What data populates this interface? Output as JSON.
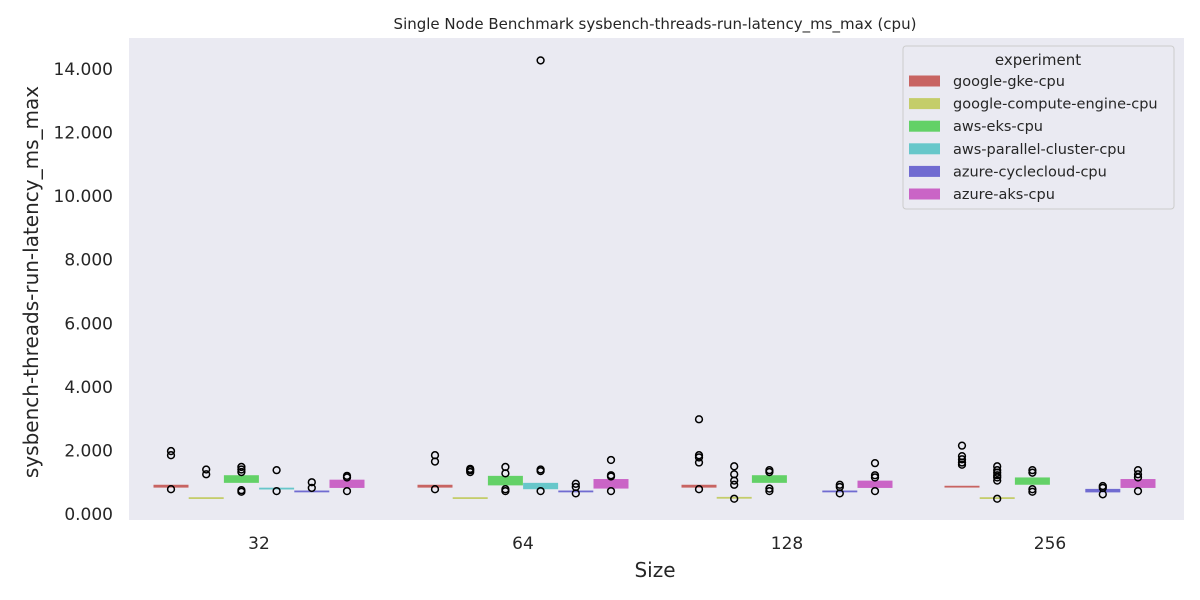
{
  "chart_data": {
    "type": "boxplot",
    "title": "Single Node Benchmark sysbench-threads-run-latency_ms_max (cpu)",
    "xlabel": "Size",
    "ylabel": "sysbench-threads-run-latency_ms_max",
    "categories": [
      "32",
      "64",
      "128",
      "256"
    ],
    "ylim": [
      -0.2,
      14.9
    ],
    "yticks": [
      0,
      2,
      4,
      6,
      8,
      10,
      12,
      14
    ],
    "ytick_labels": [
      "0.000",
      "2.000",
      "4.000",
      "6.000",
      "8.000",
      "10.000",
      "12.000",
      "14.000"
    ],
    "grid": false,
    "legend": {
      "title": "experiment",
      "placement": "top-right"
    },
    "series": [
      {
        "name": "google-gke-cpu",
        "color": "#c86462",
        "boxes": [
          {
            "category": "32",
            "q1": 0.83,
            "median": 0.87,
            "q3": 0.92,
            "outliers": [
              1.85,
              1.98,
              0.78
            ]
          },
          {
            "category": "64",
            "q1": 0.83,
            "median": 0.87,
            "q3": 0.92,
            "outliers": [
              1.65,
              1.85,
              0.78
            ]
          },
          {
            "category": "128",
            "q1": 0.83,
            "median": 0.87,
            "q3": 0.92,
            "outliers": [
              1.62,
              1.78,
              1.85,
              2.98,
              0.78
            ]
          },
          {
            "category": "256",
            "q1": 0.84,
            "median": 0.86,
            "q3": 0.88,
            "outliers": [
              1.55,
              1.62,
              1.72,
              1.82,
              2.15
            ]
          }
        ]
      },
      {
        "name": "google-compute-engine-cpu",
        "color": "#c4cd6a",
        "boxes": [
          {
            "category": "32",
            "q1": 0.49,
            "median": 0.5,
            "q3": 0.51,
            "outliers": [
              1.25,
              1.4
            ]
          },
          {
            "category": "64",
            "q1": 0.49,
            "median": 0.5,
            "q3": 0.51,
            "outliers": [
              1.32,
              1.38,
              1.42
            ]
          },
          {
            "category": "128",
            "q1": 0.49,
            "median": 0.5,
            "q3": 0.53,
            "outliers": [
              0.48,
              0.92,
              1.05,
              1.25,
              1.5
            ]
          },
          {
            "category": "256",
            "q1": 0.49,
            "median": 0.5,
            "q3": 0.51,
            "outliers": [
              0.48,
              1.05,
              1.15,
              1.22,
              1.3,
              1.38,
              1.5
            ]
          }
        ]
      },
      {
        "name": "aws-eks-cpu",
        "color": "#63d167",
        "boxes": [
          {
            "category": "32",
            "q1": 0.98,
            "median": 1.1,
            "q3": 1.22,
            "outliers": [
              0.7,
              0.75,
              1.32,
              1.4,
              1.48
            ]
          },
          {
            "category": "64",
            "q1": 0.9,
            "median": 1.05,
            "q3": 1.2,
            "outliers": [
              0.72,
              0.78,
              1.28,
              1.48
            ]
          },
          {
            "category": "128",
            "q1": 0.98,
            "median": 1.1,
            "q3": 1.22,
            "outliers": [
              0.72,
              0.8,
              1.32,
              1.38
            ]
          },
          {
            "category": "256",
            "q1": 0.92,
            "median": 1.05,
            "q3": 1.15,
            "outliers": [
              0.7,
              0.78,
              1.3,
              1.38
            ]
          }
        ]
      },
      {
        "name": "aws-parallel-cluster-cpu",
        "color": "#67c7ca",
        "boxes": [
          {
            "category": "32",
            "q1": 0.79,
            "median": 0.8,
            "q3": 0.81,
            "outliers": [
              0.72,
              1.38
            ]
          },
          {
            "category": "64",
            "q1": 0.78,
            "median": 0.88,
            "q3": 0.98,
            "outliers": [
              0.72,
              1.35,
              1.4
            ]
          }
        ]
      },
      {
        "name": "azure-cyclecloud-cpu",
        "color": "#706bd1",
        "boxes": [
          {
            "category": "32",
            "q1": 0.7,
            "median": 0.71,
            "q3": 0.72,
            "outliers": [
              0.82,
              1.0
            ]
          },
          {
            "category": "64",
            "q1": 0.7,
            "median": 0.71,
            "q3": 0.72,
            "outliers": [
              0.65,
              0.85,
              0.95
            ]
          },
          {
            "category": "128",
            "q1": 0.7,
            "median": 0.71,
            "q3": 0.72,
            "outliers": [
              0.65,
              0.85,
              0.92
            ]
          },
          {
            "category": "256",
            "q1": 0.68,
            "median": 0.74,
            "q3": 0.79,
            "outliers": [
              0.62,
              0.82,
              0.88
            ]
          }
        ]
      },
      {
        "name": "azure-aks-cpu",
        "color": "#ca64c6",
        "boxes": [
          {
            "category": "32",
            "q1": 0.82,
            "median": 0.95,
            "q3": 1.08,
            "outliers": [
              0.72,
              1.15,
              1.2
            ]
          },
          {
            "category": "64",
            "q1": 0.8,
            "median": 0.95,
            "q3": 1.1,
            "outliers": [
              0.72,
              1.18,
              1.22,
              1.7
            ]
          },
          {
            "category": "128",
            "q1": 0.82,
            "median": 0.95,
            "q3": 1.05,
            "outliers": [
              0.72,
              1.15,
              1.22,
              1.6
            ]
          },
          {
            "category": "256",
            "q1": 0.82,
            "median": 0.97,
            "q3": 1.1,
            "outliers": [
              0.72,
              1.15,
              1.25,
              1.38
            ]
          }
        ]
      }
    ],
    "extra_outliers": [
      {
        "category": "64",
        "series": "azure-aks-cpu",
        "value": 14.27
      }
    ]
  }
}
